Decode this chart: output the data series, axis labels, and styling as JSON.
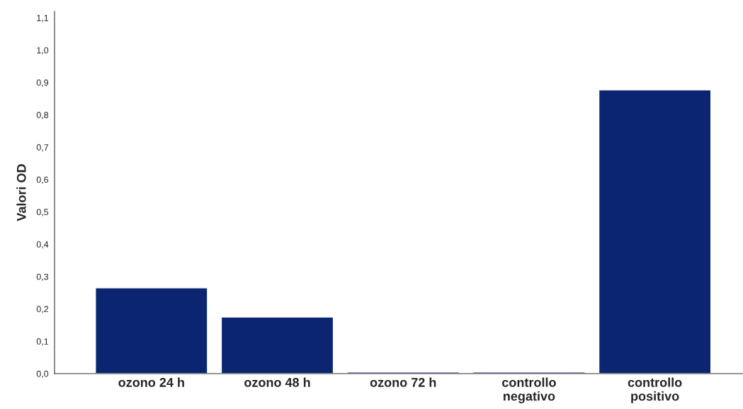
{
  "chart_data": {
    "type": "bar",
    "ylabel": "Valori OD",
    "categories": [
      "ozono 24 h",
      "ozono 48 h",
      "ozono 72 h",
      "controllo\nnegativo",
      "controllo\npositivo"
    ],
    "values": [
      0.265,
      0.175,
      0.005,
      0.005,
      0.877
    ],
    "color": "#0b2570",
    "ylim": [
      0,
      1.12
    ],
    "yticks": [
      {
        "value": 0,
        "label": "0,0"
      },
      {
        "value": 0.1,
        "label": "0,1"
      },
      {
        "value": 0.2,
        "label": "0,2"
      },
      {
        "value": 0.3,
        "label": "0,3"
      },
      {
        "value": 0.4,
        "label": "0,4"
      },
      {
        "value": 0.5,
        "label": "0,5"
      },
      {
        "value": 0.6,
        "label": "0,6"
      },
      {
        "value": 0.7,
        "label": "0,7"
      },
      {
        "value": 0.8,
        "label": "0,8"
      },
      {
        "value": 0.9,
        "label": "0,9"
      },
      {
        "value": 1.0,
        "label": "1,0"
      },
      {
        "value": 1.1,
        "label": "1,1"
      }
    ],
    "grid": false,
    "legend": false
  }
}
